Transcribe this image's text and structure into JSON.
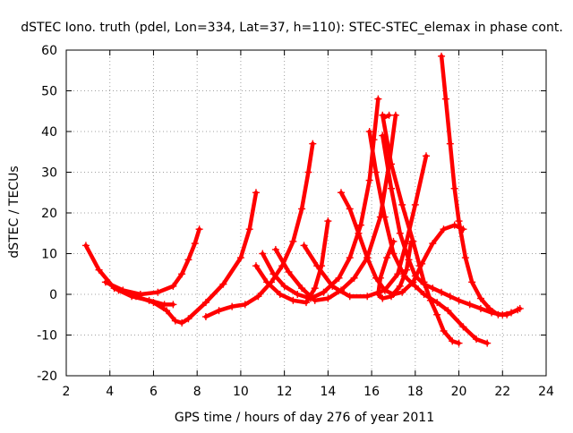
{
  "chart_data": {
    "type": "scatter",
    "title": "dSTEC Iono. truth (pdel, Lon=334, Lat=37, h=110): STEC-STEC_elemax in phase cont.",
    "xlabel": "GPS time / hours of day 276 of year 2011",
    "ylabel": "dSTEC  / TECUs",
    "xlim": [
      2,
      24
    ],
    "ylim": [
      -20,
      60
    ],
    "xticks": [
      2,
      4,
      6,
      8,
      10,
      12,
      14,
      16,
      18,
      20,
      22,
      24
    ],
    "yticks": [
      -20,
      -10,
      0,
      10,
      20,
      30,
      40,
      50,
      60
    ],
    "grid": true,
    "marker": "plus",
    "color": "#ff0000",
    "series": [
      {
        "x": [
          2.9,
          3.5,
          4.2,
          5.0,
          5.8,
          6.5,
          6.9
        ],
        "y": [
          12,
          6,
          1.5,
          -0.5,
          -1.5,
          -2.5,
          -2.5
        ]
      },
      {
        "x": [
          3.8,
          4.6,
          5.4,
          6.2,
          6.9,
          7.3,
          7.6,
          7.9,
          8.1
        ],
        "y": [
          3,
          1,
          0,
          0.5,
          2,
          5,
          8.5,
          12.5,
          16
        ]
      },
      {
        "x": [
          4.4,
          5.2,
          6.0,
          6.6,
          7.0,
          7.3,
          7.6,
          8.4,
          9.2,
          10.0,
          10.4,
          10.7
        ],
        "y": [
          1,
          -0.5,
          -2,
          -4,
          -6.5,
          -7,
          -6,
          -2,
          2.5,
          9,
          16,
          25
        ]
      },
      {
        "x": [
          8.4,
          9.0,
          9.6,
          10.2,
          10.8,
          11.4,
          11.9,
          12.4,
          12.8,
          13.1,
          13.3
        ],
        "y": [
          -5.5,
          -4,
          -3,
          -2.5,
          -0.5,
          3,
          7,
          13,
          21,
          30,
          37
        ]
      },
      {
        "x": [
          10.7,
          11.2,
          11.8,
          12.4,
          13.0,
          13.4,
          13.7,
          14.0
        ],
        "y": [
          7,
          3,
          0,
          -1.5,
          -2,
          1.5,
          7,
          18
        ]
      },
      {
        "x": [
          11.0,
          11.5,
          12.0,
          12.6,
          13.2,
          13.8,
          14.5,
          15.0,
          15.5,
          15.9,
          16.1,
          16.3
        ],
        "y": [
          10,
          5,
          2,
          0,
          -1,
          0.5,
          4,
          9,
          17,
          28,
          38,
          48
        ]
      },
      {
        "x": [
          11.6,
          12.2,
          12.8,
          13.4,
          14.0,
          14.6,
          15.2,
          15.8,
          16.4,
          16.8,
          17.1
        ],
        "y": [
          11,
          5.5,
          1.5,
          -1.5,
          -1,
          1,
          4,
          9,
          19,
          32,
          44
        ]
      },
      {
        "x": [
          12.9,
          13.5,
          14.2,
          15.0,
          15.8,
          16.6,
          17.2,
          17.6,
          18.0,
          18.5
        ],
        "y": [
          12,
          7,
          2,
          -0.5,
          -0.5,
          1,
          5,
          13,
          22,
          34
        ]
      },
      {
        "x": [
          14.6,
          15.0,
          15.4,
          15.8,
          16.2,
          16.6,
          17.0,
          17.4,
          17.9,
          18.3,
          18.8,
          19.3,
          19.8,
          20.2
        ],
        "y": [
          25,
          21,
          15,
          9,
          4,
          1,
          0,
          0.5,
          3,
          7.5,
          12.5,
          16,
          17,
          16
        ]
      },
      {
        "x": [
          15.9,
          16.2,
          16.6,
          17.0,
          17.5,
          18.0,
          18.4,
          19.0,
          19.5,
          20.2,
          20.8,
          21.3
        ],
        "y": [
          40,
          30,
          19,
          10,
          4.5,
          2,
          0,
          -2,
          -4,
          -8,
          -11,
          -12
        ]
      },
      {
        "x": [
          16.5,
          16.9,
          17.3,
          17.7,
          18.0,
          18.4,
          18.8,
          19.2,
          19.6,
          20.0,
          20.5,
          21.0,
          21.5,
          22.0,
          22.4,
          22.8
        ],
        "y": [
          39,
          26,
          15,
          8.5,
          4.5,
          2.5,
          1.5,
          0.5,
          -0.5,
          -1.5,
          -2.5,
          -3.5,
          -4.5,
          -5,
          -4.5,
          -3.5
        ]
      },
      {
        "x": [
          16.8,
          16.6,
          16.5,
          16.9,
          17.4,
          17.9,
          18.2,
          18.4,
          18.7,
          19.0,
          19.3,
          19.7,
          20.0
        ],
        "y": [
          44,
          43.5,
          44,
          32,
          22,
          13,
          7,
          3,
          -1.5,
          -5,
          -9,
          -11.5,
          -12
        ]
      },
      {
        "x": [
          17.0,
          16.7,
          16.4,
          16.3,
          16.5,
          16.9,
          17.3,
          17.6,
          17.8
        ],
        "y": [
          13,
          9,
          4,
          0,
          -1,
          -0.5,
          2,
          6,
          12.5
        ]
      },
      {
        "x": [
          19.2,
          19.4,
          19.6,
          19.8,
          20.0,
          20.3,
          20.6,
          21.0,
          21.4,
          21.8,
          22.2,
          22.7
        ],
        "y": [
          58.5,
          48,
          37,
          26,
          18,
          9,
          3,
          -1,
          -3.5,
          -5,
          -5,
          -3.8
        ]
      }
    ]
  }
}
